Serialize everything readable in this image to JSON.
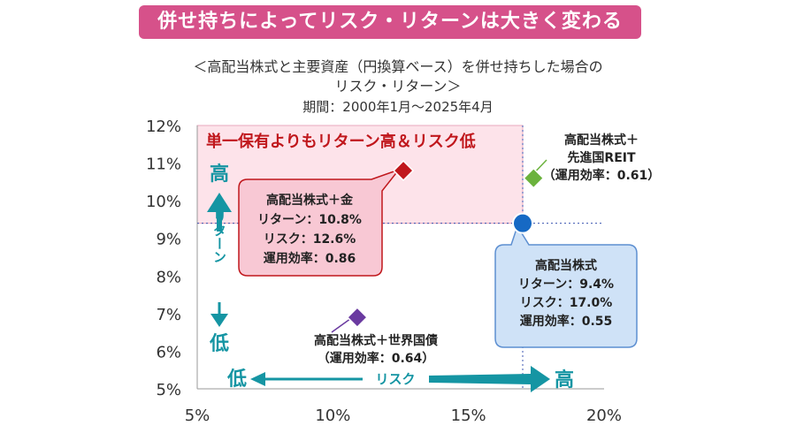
{
  "banner": "併せ持ちによってリスク・リターンは大きく変わる",
  "subtitle": {
    "line1": "＜高配当株式と主要資産（円換算ベース）を併せ持ちした場合の",
    "line2": "リスク・リターン＞"
  },
  "period": "期間：2000年1月〜2025年4月",
  "region_label": "単一保有よりもリターン高＆リスク低",
  "y_axis": {
    "high": "高",
    "label": "リターン",
    "low": "低"
  },
  "x_axis": {
    "low": "低",
    "label": "リスク",
    "high": "高"
  },
  "colors": {
    "banner": "#d6518a",
    "region": "#fde3ea",
    "red": "#c0171c",
    "green": "#6bb23d",
    "blue": "#1669c4",
    "purple": "#6a3aa0",
    "arrow": "#1595a3"
  },
  "chart_data": {
    "type": "scatter",
    "xlim": [
      5,
      20
    ],
    "ylim": [
      5,
      12
    ],
    "x_ticks": [
      "5%",
      "10%",
      "15%",
      "20%"
    ],
    "y_ticks": [
      "5%",
      "6%",
      "7%",
      "8%",
      "9%",
      "10%",
      "11%",
      "12%"
    ],
    "reference_lines": {
      "x": 17.0,
      "y": 9.4
    },
    "points": [
      {
        "label_lines": [
          "高配当株式＋金",
          "リターン：10.8%",
          "リスク：12.6%",
          "運用効率：0.86"
        ],
        "x": 12.6,
        "y": 10.8,
        "color": "#c0171c",
        "marker": "diamond"
      },
      {
        "label_lines": [
          "高配当株式",
          "リターン：9.4%",
          "リスク：17.0%",
          "運用効率：0.55"
        ],
        "x": 17.0,
        "y": 9.4,
        "color": "#1669c4",
        "marker": "circle"
      },
      {
        "label_lines": [
          "高配当株式＋",
          "先進国REIT",
          "（運用効率：0.61）"
        ],
        "x": 17.4,
        "y": 10.6,
        "color": "#6bb23d",
        "marker": "diamond"
      },
      {
        "label_lines": [
          "高配当株式＋世界国債",
          "（運用効率：0.64）"
        ],
        "x": 10.9,
        "y": 6.9,
        "color": "#6a3aa0",
        "marker": "diamond"
      }
    ]
  }
}
